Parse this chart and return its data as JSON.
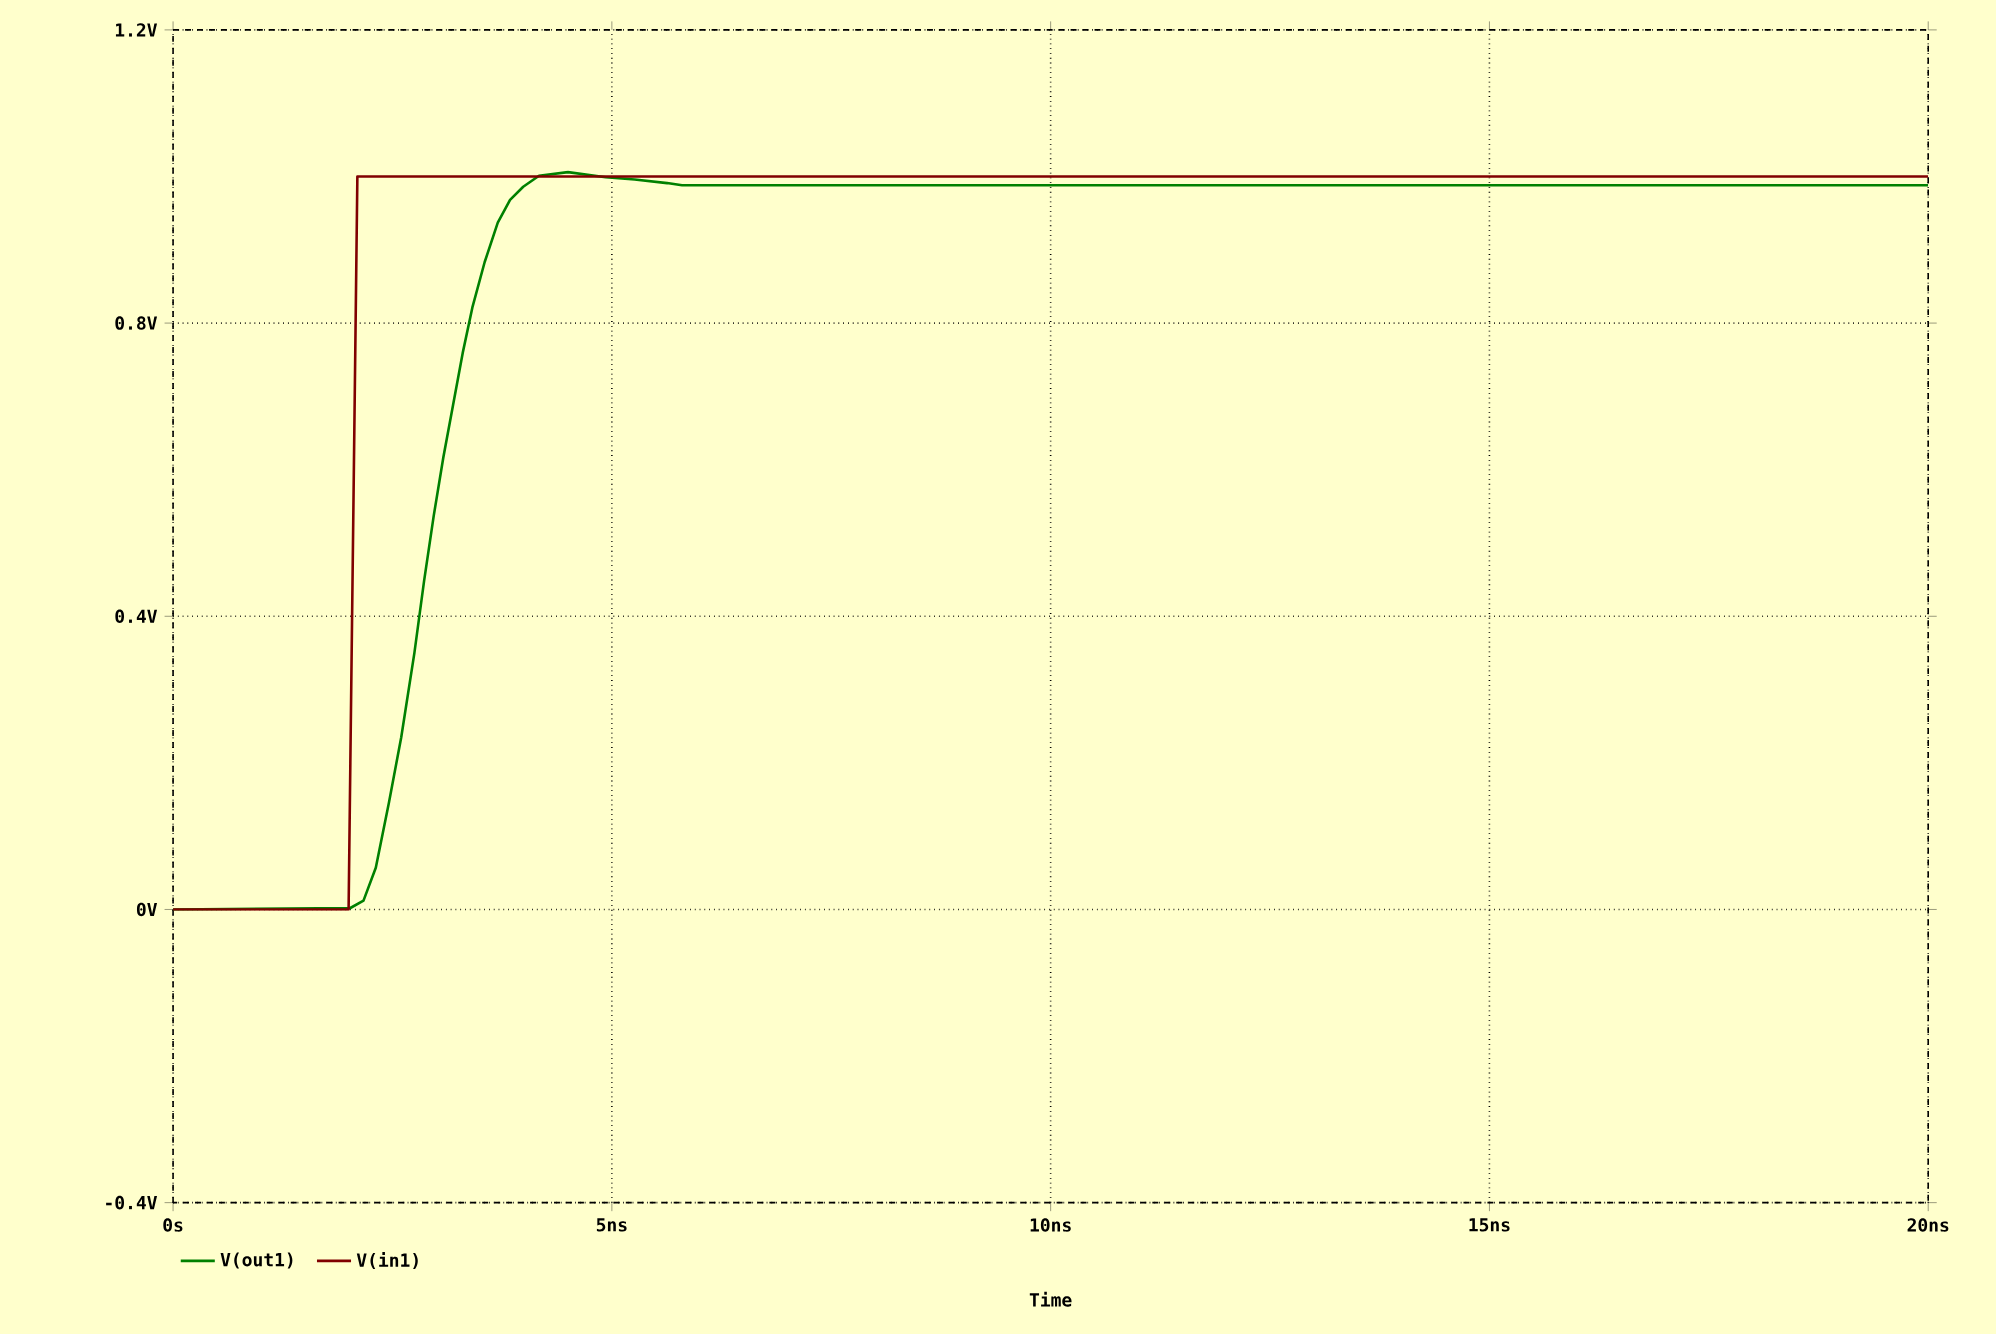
{
  "chart_data": {
    "type": "line",
    "xlabel": "Time",
    "xlim": [
      0,
      20
    ],
    "ylim": [
      -0.4,
      1.2
    ],
    "xticks": [
      {
        "value": 0,
        "label": "0s"
      },
      {
        "value": 5,
        "label": "5ns"
      },
      {
        "value": 10,
        "label": "10ns"
      },
      {
        "value": 15,
        "label": "15ns"
      },
      {
        "value": 20,
        "label": "20ns"
      }
    ],
    "yticks": [
      {
        "value": -0.4,
        "label": "-0.4V"
      },
      {
        "value": 0,
        "label": "0V"
      },
      {
        "value": 0.4,
        "label": "0.4V"
      },
      {
        "value": 0.8,
        "label": "0.8V"
      },
      {
        "value": 1.2,
        "label": "1.2V"
      }
    ],
    "grid": true,
    "legend": "bottom",
    "line_style": "solid",
    "series": [
      {
        "name": "V(out1)",
        "color": "#008000",
        "x": [
          0,
          2.02,
          2.17,
          2.31,
          2.46,
          2.6,
          2.75,
          2.86,
          2.97,
          3.08,
          3.19,
          3.3,
          3.41,
          3.55,
          3.7,
          3.84,
          3.99,
          4.17,
          4.5,
          4.93,
          5.26,
          5.63,
          5.8,
          20
        ],
        "values": [
          0,
          0.002,
          0.012,
          0.057,
          0.146,
          0.235,
          0.35,
          0.448,
          0.537,
          0.617,
          0.688,
          0.759,
          0.821,
          0.883,
          0.937,
          0.968,
          0.986,
          1.001,
          1.006,
          0.999,
          0.996,
          0.991,
          0.988,
          0.988
        ]
      },
      {
        "name": "V(in1)",
        "color": "#800000",
        "x": [
          0,
          2.0,
          2.1,
          20
        ],
        "values": [
          0,
          0,
          1.0,
          1.0
        ]
      }
    ]
  }
}
